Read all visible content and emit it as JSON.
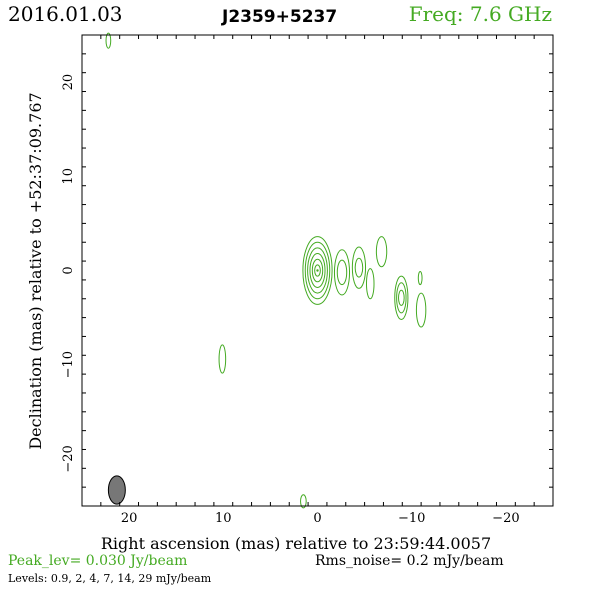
{
  "header": {
    "date": "2016.01.03",
    "source": "J2359+5237",
    "freq": "Freq: 7.6 GHz"
  },
  "colors": {
    "contour": "#44aa22",
    "beam": "#777777",
    "axis": "#000000"
  },
  "chart_data": {
    "type": "contour",
    "xlabel": "Right ascension (mas) relative to 23:59:44.0057",
    "ylabel": "Declination (mas) relative to +52:37:09.767",
    "xlim": [
      25,
      -25
    ],
    "ylim": [
      -25,
      25
    ],
    "xticks": [
      20,
      10,
      0,
      -10,
      -20
    ],
    "xtick_labels": [
      "20",
      "10",
      "0",
      "−10",
      "−20"
    ],
    "yticks": [
      20,
      10,
      0,
      -10,
      -20
    ],
    "ytick_labels": [
      "20",
      "10",
      "0",
      "−10",
      "−20"
    ],
    "peak": "Peak_lev=  0.030 Jy/beam",
    "rms": "Rms_noise=   0.2 mJy/beam",
    "levels": "Levels: 0.9,   2,   4,   7,  14,  29 mJy/beam",
    "beam": {
      "x": 21.3,
      "y": -23.3,
      "major": 3.0,
      "minor": 1.0
    },
    "components": [
      {
        "x": 0.0,
        "y": 0.0,
        "rings": [
          [
            0.3,
            0.6
          ],
          [
            0.55,
            1.2
          ],
          [
            0.8,
            1.8
          ],
          [
            1.05,
            2.4
          ],
          [
            1.3,
            3.0
          ],
          [
            1.55,
            3.6
          ]
        ]
      },
      {
        "x": -2.6,
        "y": -0.2,
        "rings": [
          [
            0.5,
            1.3
          ],
          [
            0.8,
            2.4
          ]
        ]
      },
      {
        "x": -4.4,
        "y": 0.3,
        "rings": [
          [
            0.4,
            1.0
          ],
          [
            0.7,
            2.2
          ]
        ]
      },
      {
        "x": -5.6,
        "y": -1.4,
        "rings": [
          [
            0.4,
            1.6
          ]
        ]
      },
      {
        "x": -6.8,
        "y": 2.0,
        "rings": [
          [
            0.55,
            1.6
          ]
        ]
      },
      {
        "x": -8.9,
        "y": -2.9,
        "rings": [
          [
            0.3,
            0.8
          ],
          [
            0.5,
            1.6
          ],
          [
            0.7,
            2.3
          ]
        ]
      },
      {
        "x": -11.0,
        "y": -4.2,
        "rings": [
          [
            0.5,
            1.8
          ]
        ]
      },
      {
        "x": -10.9,
        "y": -0.8,
        "rings": [
          [
            0.2,
            0.7
          ]
        ]
      },
      {
        "x": 10.1,
        "y": -9.4,
        "rings": [
          [
            0.35,
            1.5
          ]
        ]
      },
      {
        "x": 22.2,
        "y": 24.4,
        "rings": [
          [
            0.25,
            0.8
          ]
        ]
      },
      {
        "x": 1.5,
        "y": -24.5,
        "rings": [
          [
            0.3,
            0.7
          ]
        ]
      }
    ]
  }
}
